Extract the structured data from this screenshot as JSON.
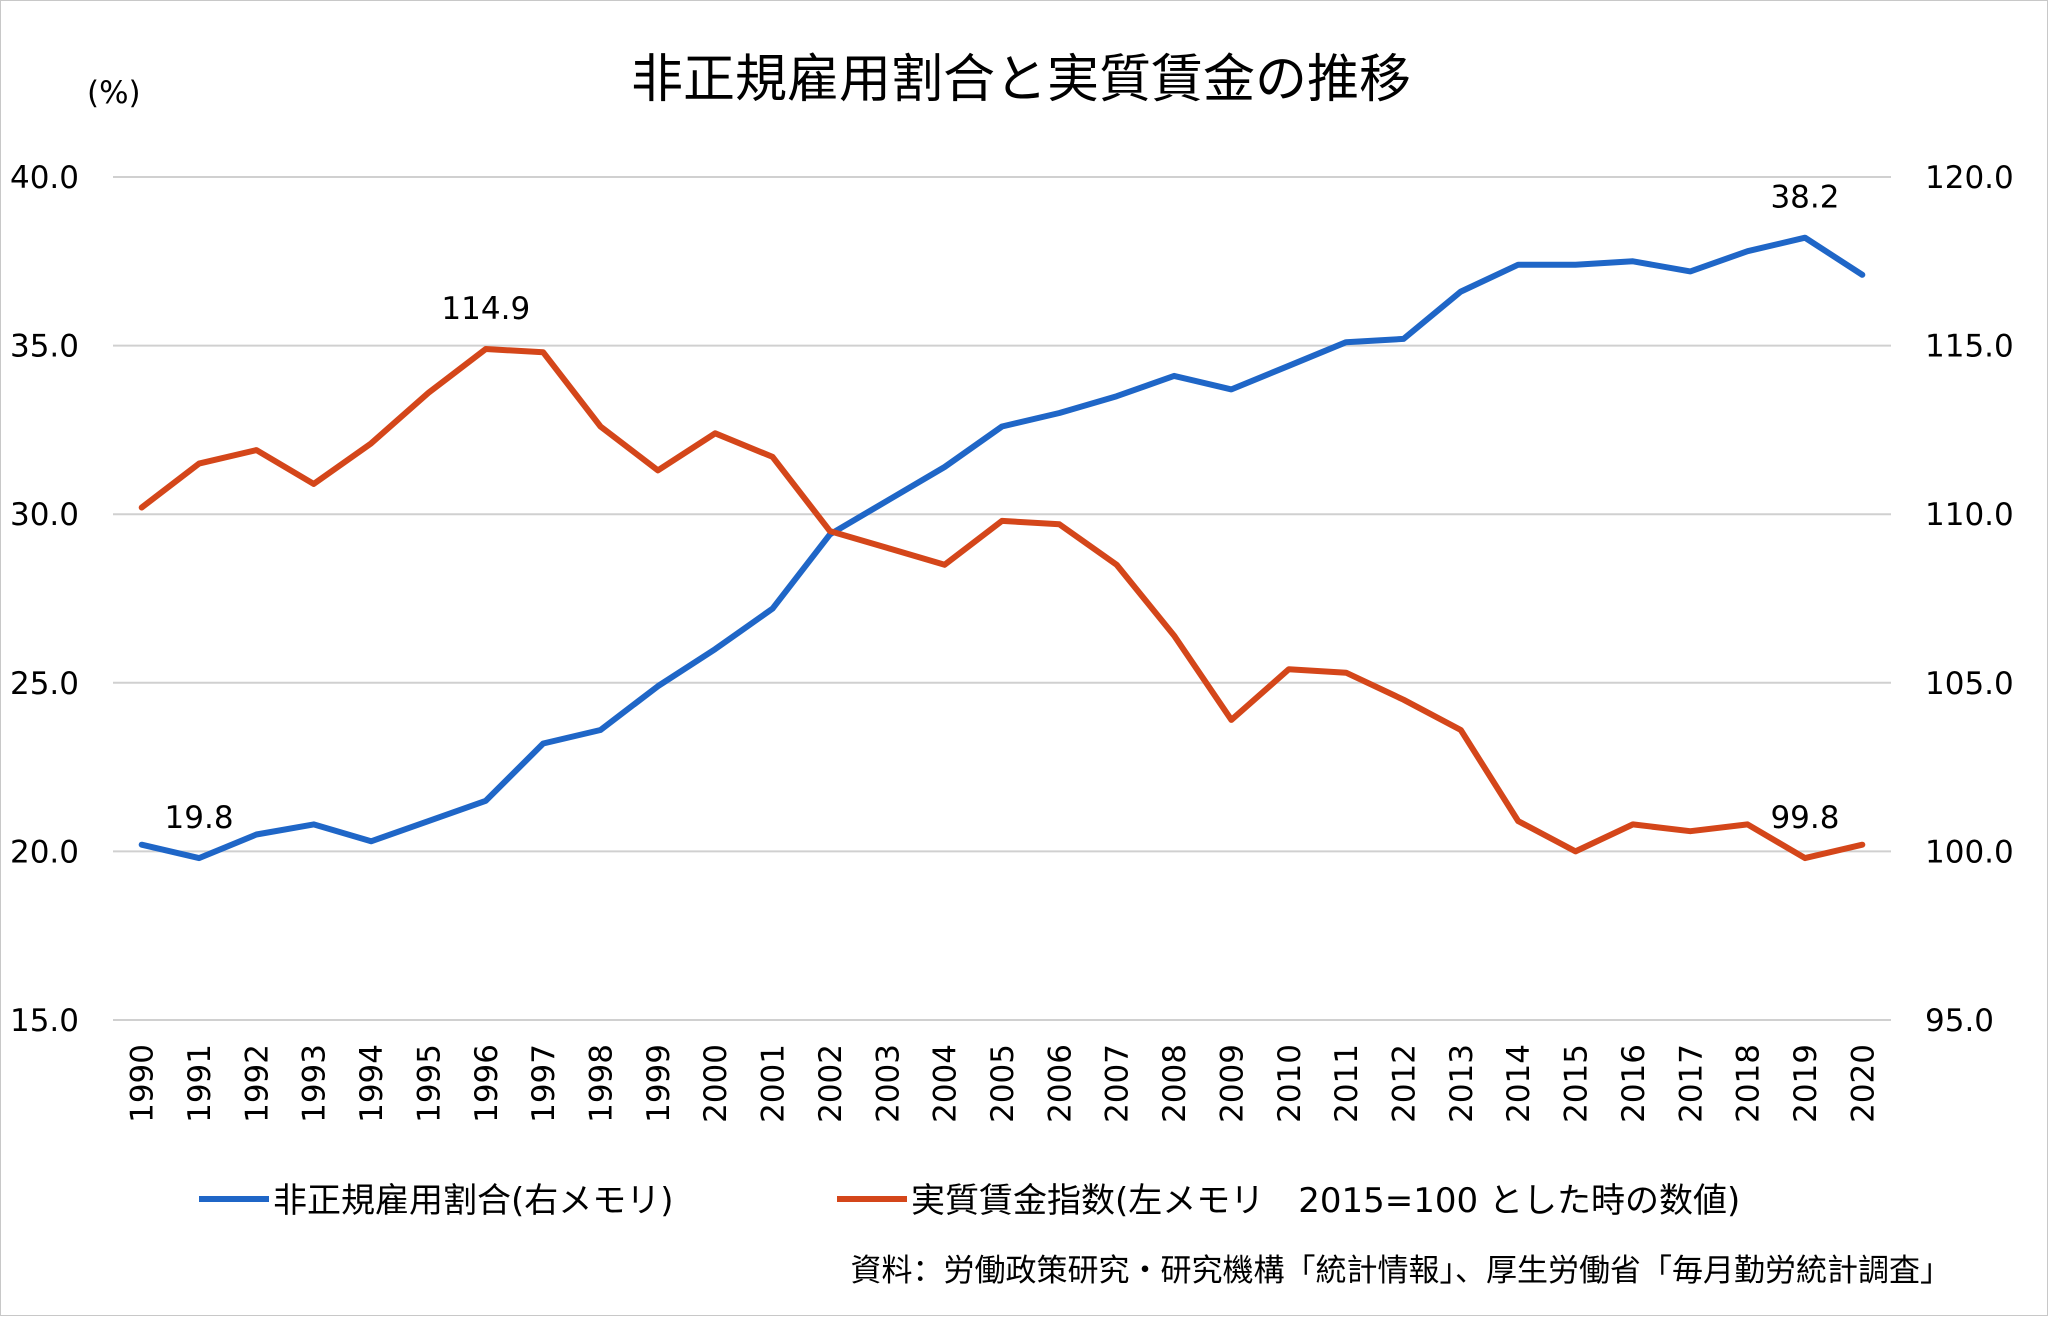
{
  "chart_data": {
    "type": "line",
    "title": "非正規雇用割合と実質賃金の推移",
    "ylabel_left": "(%)",
    "x": [
      1990,
      1991,
      1992,
      1993,
      1994,
      1995,
      1996,
      1997,
      1998,
      1999,
      2000,
      2001,
      2002,
      2003,
      2004,
      2005,
      2006,
      2007,
      2008,
      2009,
      2010,
      2011,
      2012,
      2013,
      2014,
      2015,
      2016,
      2017,
      2018,
      2019,
      2020
    ],
    "left_axis": {
      "ylim": [
        15,
        40
      ],
      "ticks": [
        "15.0",
        "20.0",
        "25.0",
        "30.0",
        "35.0",
        "40.0"
      ]
    },
    "right_axis": {
      "ylim": [
        95,
        120
      ],
      "ticks": [
        "95.0",
        "100.0",
        "105.0",
        "110.0",
        "115.0",
        "120.0"
      ]
    },
    "grid": true,
    "legend_position": "bottom",
    "series": [
      {
        "name": "非正規雇用割合(右メモリ)",
        "axis": "left",
        "color": "#1f66c7",
        "values": [
          20.2,
          19.8,
          20.5,
          20.8,
          20.3,
          20.9,
          21.5,
          23.2,
          23.6,
          24.9,
          26.0,
          27.2,
          29.4,
          30.4,
          31.4,
          32.6,
          33.0,
          33.5,
          34.1,
          33.7,
          34.4,
          35.1,
          35.2,
          36.6,
          37.4,
          37.4,
          37.5,
          37.2,
          37.8,
          38.2,
          37.1
        ],
        "labels": [
          {
            "x": 1991,
            "text": "19.8"
          },
          {
            "x": 2019,
            "text": "38.2"
          }
        ]
      },
      {
        "name": "実質賃金指数(左メモリ　2015=100 とした時の数値)",
        "axis": "right",
        "color": "#d4461a",
        "values": [
          110.2,
          111.5,
          111.9,
          110.9,
          112.1,
          113.6,
          114.9,
          114.8,
          112.6,
          111.3,
          112.4,
          111.7,
          109.5,
          109.0,
          108.5,
          109.8,
          109.7,
          108.5,
          106.4,
          103.9,
          105.4,
          105.3,
          104.5,
          103.6,
          100.9,
          100.0,
          100.8,
          100.6,
          100.8,
          99.8,
          100.2
        ],
        "labels": [
          {
            "x": 1996,
            "text": "114.9"
          },
          {
            "x": 2019,
            "text": "99.8"
          }
        ]
      }
    ]
  },
  "source_note": "資料：労働政策研究・研究機構「統計情報」、厚生労働省「毎月勤労統計調査」"
}
